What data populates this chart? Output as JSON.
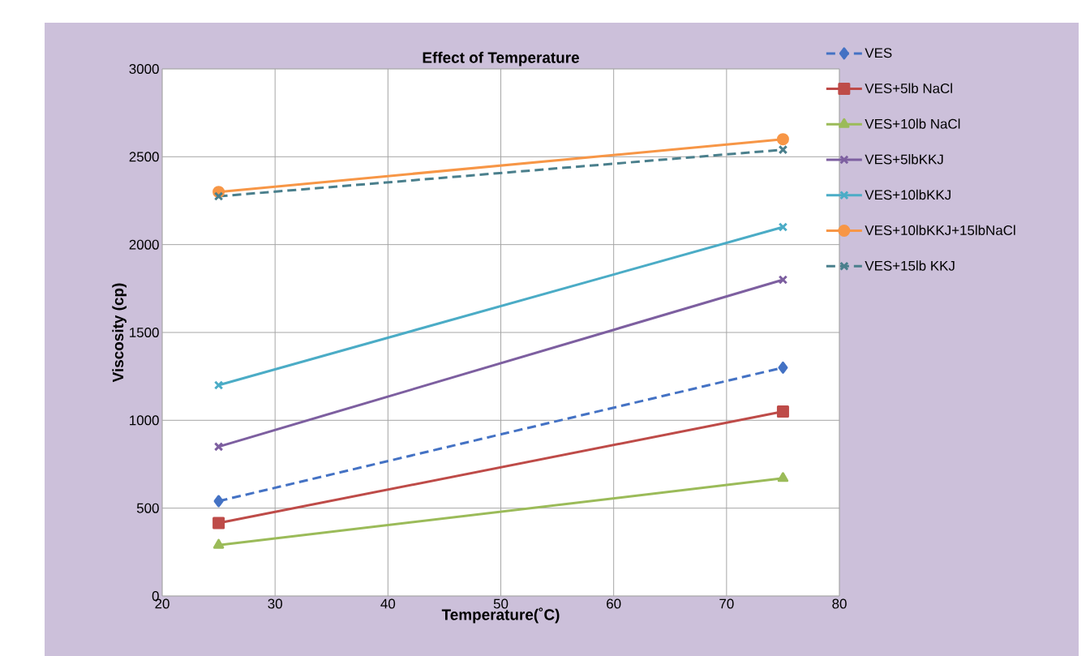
{
  "chart_data": {
    "type": "line",
    "title": "Effect of Temperature",
    "xlabel": "Temperature(˚C)",
    "ylabel": "Viscosity (cp)",
    "x": [
      25,
      75
    ],
    "xlim": [
      20,
      80
    ],
    "xticks": [
      20,
      30,
      40,
      50,
      60,
      70,
      80
    ],
    "ylim": [
      0,
      3000
    ],
    "yticks": [
      0,
      500,
      1000,
      1500,
      2000,
      2500,
      3000
    ],
    "grid": true,
    "legend": "right",
    "series": [
      {
        "name": "VES",
        "color": "#4472c4",
        "values": [
          540,
          1300
        ],
        "marker": "diamond",
        "line_style": "dashed"
      },
      {
        "name": "VES+5lb NaCl",
        "color": "#be4b48",
        "values": [
          415,
          1050
        ],
        "marker": "square",
        "line_style": "solid"
      },
      {
        "name": "VES+10lb NaCl",
        "color": "#9bbb59",
        "values": [
          290,
          670
        ],
        "marker": "triangle",
        "line_style": "solid"
      },
      {
        "name": "VES+5lbKKJ",
        "color": "#7d5fa0",
        "values": [
          850,
          1800
        ],
        "marker": "cross",
        "line_style": "solid"
      },
      {
        "name": "VES+10lbKKJ",
        "color": "#4bacc6",
        "values": [
          1200,
          2100
        ],
        "marker": "cross",
        "line_style": "solid"
      },
      {
        "name": "VES+10lbKKJ+15lbNaCl",
        "color": "#f79646",
        "values": [
          2300,
          2600
        ],
        "marker": "circle",
        "line_style": "solid"
      },
      {
        "name": "VES+15lb KKJ",
        "color": "#4a7f8c",
        "values": [
          2275,
          2540
        ],
        "marker": "cross",
        "line_style": "dashed"
      }
    ]
  }
}
